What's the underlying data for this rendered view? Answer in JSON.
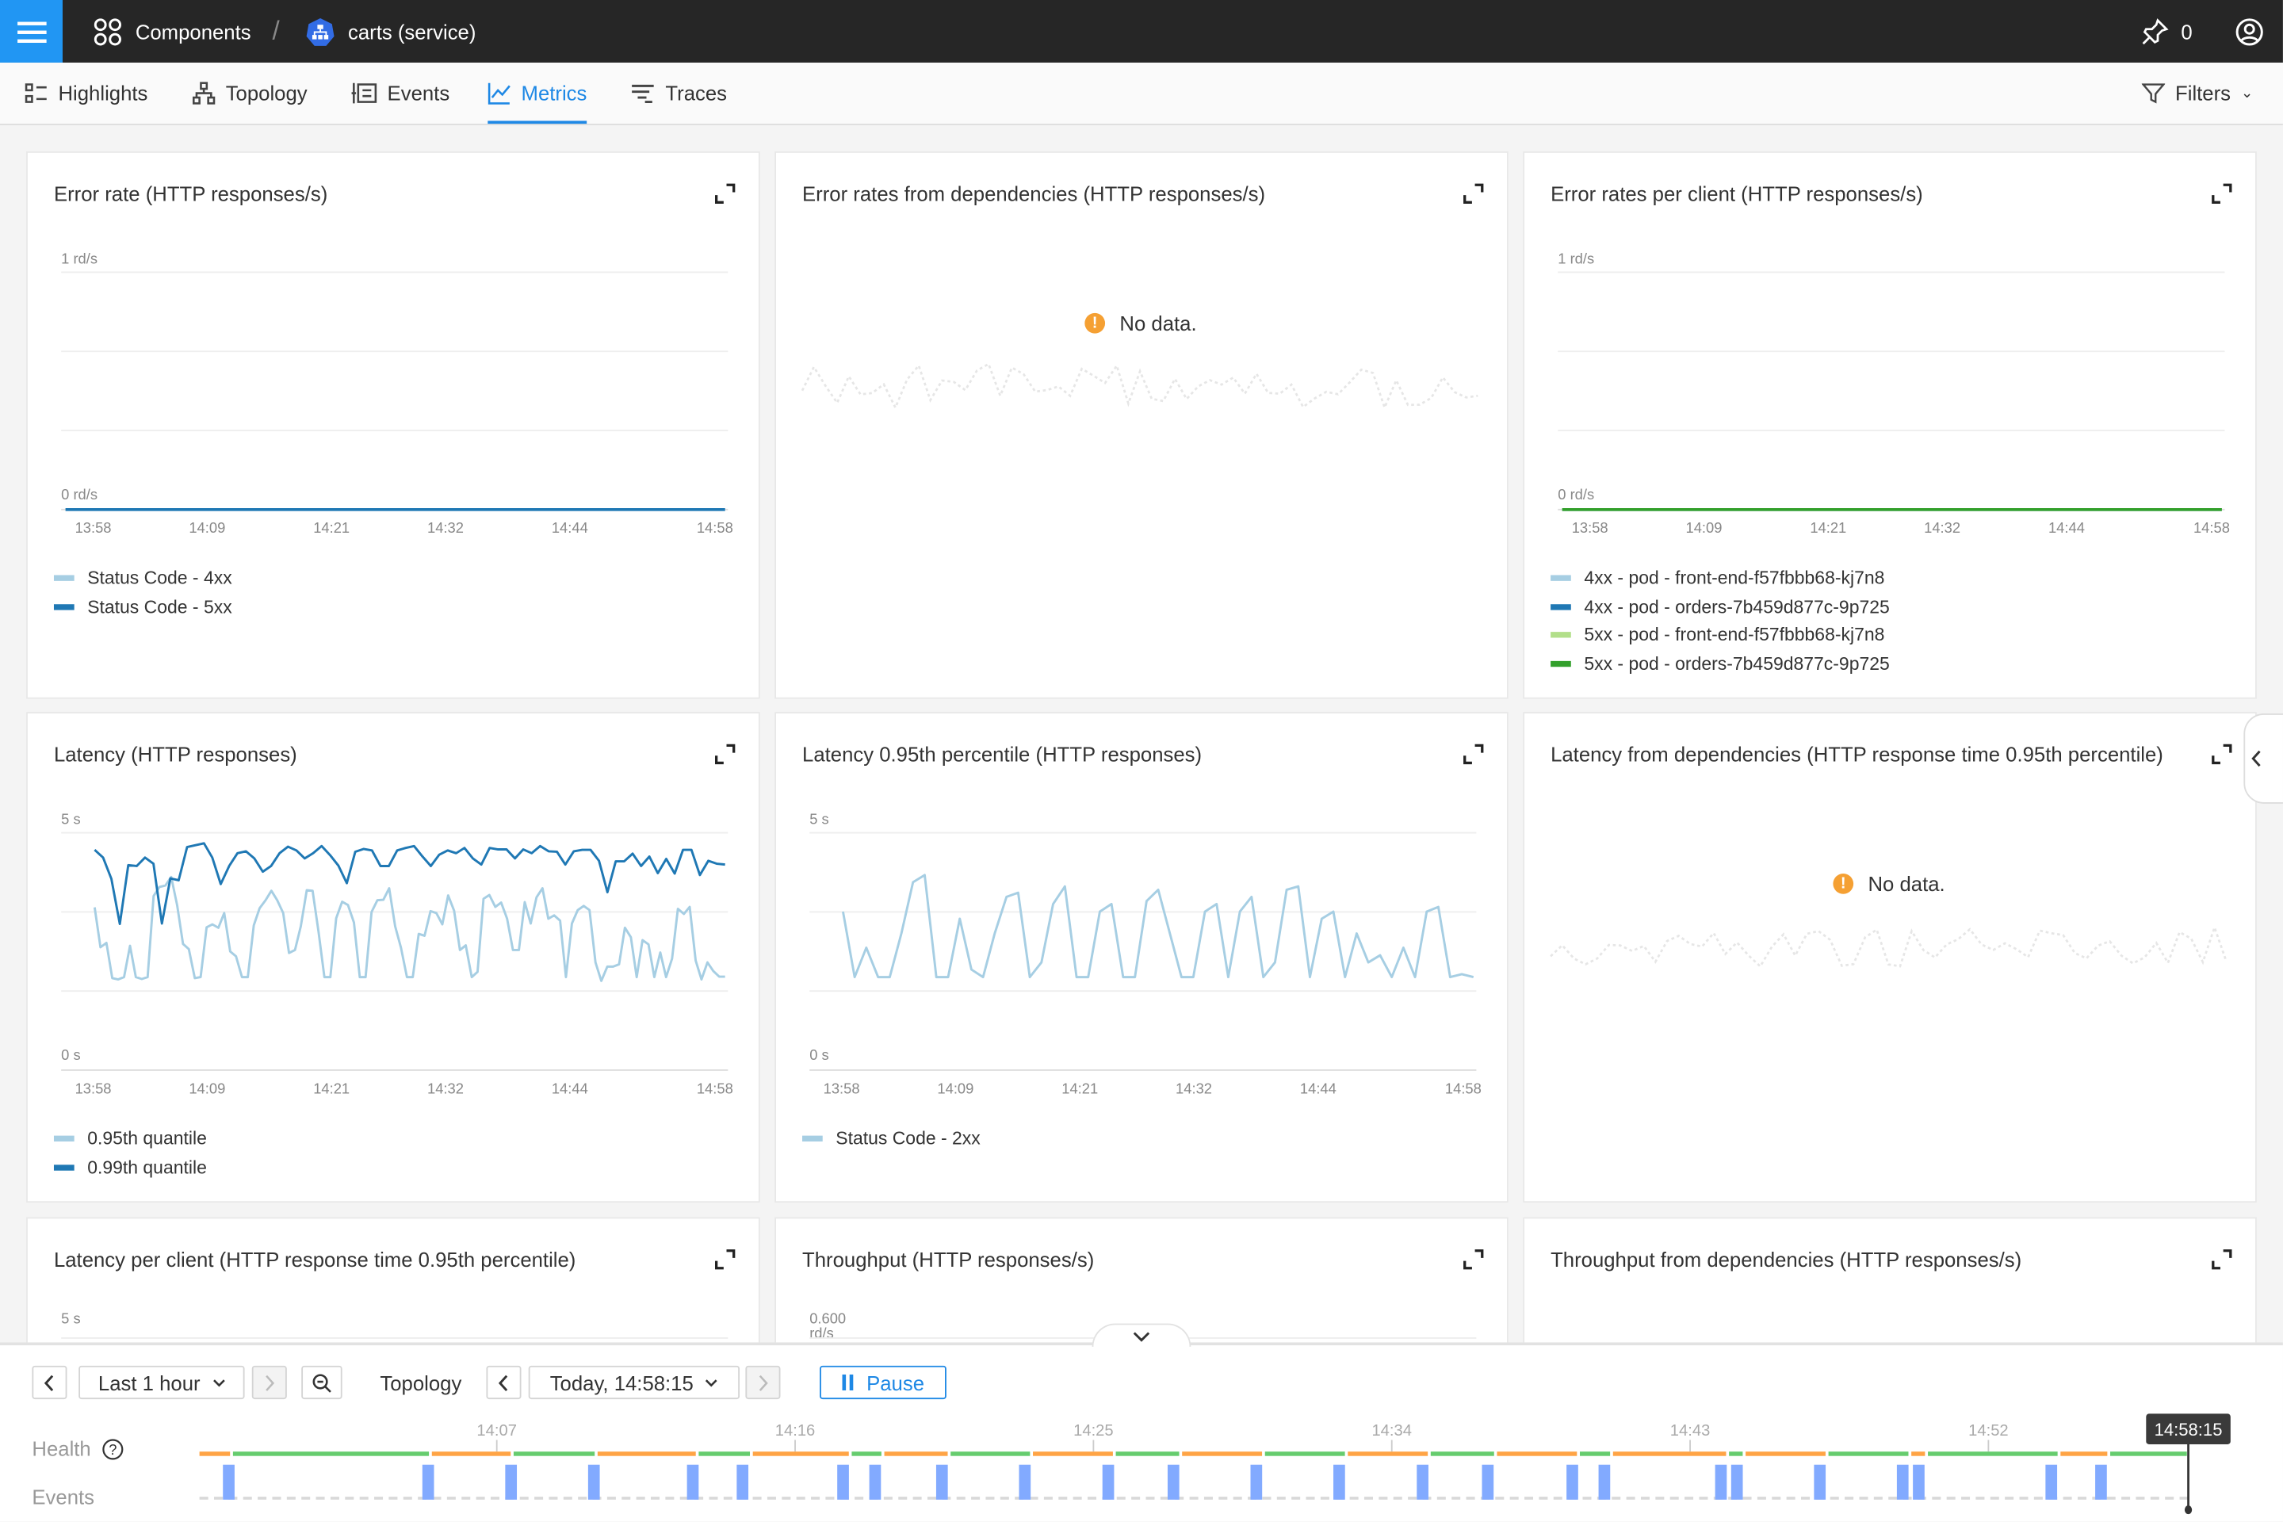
{
  "topbar": {
    "menu_icon": "hamburger-icon",
    "breadcrumb": [
      {
        "label": "Components",
        "icon": "components-grid-icon"
      },
      {
        "label": "carts (service)",
        "icon": "kubernetes-service-icon"
      }
    ],
    "separator": "/",
    "pins_count": "0"
  },
  "tabs": [
    {
      "label": "Highlights",
      "icon": "highlights-icon"
    },
    {
      "label": "Topology",
      "icon": "topology-icon"
    },
    {
      "label": "Events",
      "icon": "events-icon"
    },
    {
      "label": "Metrics",
      "icon": "metrics-icon",
      "active": true
    },
    {
      "label": "Traces",
      "icon": "traces-icon"
    }
  ],
  "filters_label": "Filters",
  "colors": {
    "accent": "#1e88e5",
    "topbar": "#262626",
    "warning": "#f5a033",
    "health_ok": "#66cc6e",
    "health_warn": "#ffa445",
    "event": "#82aaff"
  },
  "chart_data": [
    {
      "type": "line",
      "title": "Error rate (HTTP responses/s)",
      "ylim": [
        0,
        1
      ],
      "yticks": [
        "1 rd/s",
        "0 rd/s"
      ],
      "x_range": [
        "13:58",
        "14:58"
      ],
      "xticks": [
        "13:58",
        "14:09",
        "14:21",
        "14:32",
        "14:44",
        "14:58"
      ],
      "grid": true,
      "series": [
        {
          "name": "Status Code - 4xx",
          "color": "#a6cee3",
          "values": [
            0,
            0
          ]
        },
        {
          "name": "Status Code - 5xx",
          "color": "#1f78b4",
          "values": [
            0,
            0
          ]
        }
      ]
    },
    {
      "type": "line",
      "title": "Error rates from dependencies (HTTP responses/s)",
      "no_data": "No data.",
      "series": []
    },
    {
      "type": "line",
      "title": "Error rates per client (HTTP responses/s)",
      "ylim": [
        0,
        1
      ],
      "yticks": [
        "1 rd/s",
        "0 rd/s"
      ],
      "x_range": [
        "13:58",
        "14:58"
      ],
      "xticks": [
        "13:58",
        "14:09",
        "14:21",
        "14:32",
        "14:44",
        "14:58"
      ],
      "grid": true,
      "series": [
        {
          "name": "4xx - pod - front-end-f57fbbb68-kj7n8",
          "color": "#a6cee3",
          "values": [
            0,
            0
          ]
        },
        {
          "name": "4xx - pod - orders-7b459d877c-9p725",
          "color": "#1f78b4",
          "values": [
            0,
            0
          ]
        },
        {
          "name": "5xx - pod - front-end-f57fbbb68-kj7n8",
          "color": "#b2df8a",
          "values": [
            0,
            0
          ]
        },
        {
          "name": "5xx - pod - orders-7b459d877c-9p725",
          "color": "#33a02c",
          "values": [
            0,
            0
          ]
        }
      ]
    },
    {
      "type": "line",
      "title": "Latency (HTTP responses)",
      "ylim": [
        0,
        5
      ],
      "yticks": [
        "5 s",
        "0 s"
      ],
      "x_range": [
        "13:58",
        "14:58"
      ],
      "xticks": [
        "13:58",
        "14:09",
        "14:21",
        "14:32",
        "14:44",
        "14:58"
      ],
      "grid": true,
      "series": [
        {
          "name": "0.95th quantile",
          "color": "#a6cee3",
          "values": [
            3.43,
            2.59,
            2.68,
            1.94,
            1.91,
            1.96,
            2.62,
            1.96,
            1.92,
            1.96,
            3.67,
            3.86,
            3.89,
            4.07,
            3.47,
            2.66,
            2.55,
            1.94,
            1.96,
            3.01,
            3.07,
            3.0,
            3.31,
            2.5,
            2.4,
            1.96,
            1.96,
            3.05,
            3.41,
            3.58,
            3.78,
            3.58,
            3.31,
            2.47,
            2.53,
            3.03,
            3.79,
            3.78,
            2.91,
            1.96,
            1.96,
            3.2,
            3.55,
            3.48,
            3.11,
            1.96,
            1.96,
            3.33,
            3.58,
            3.59,
            3.83,
            3.03,
            2.58,
            1.96,
            1.96,
            2.87,
            2.83,
            3.35,
            3.31,
            3.07,
            3.68,
            3.36,
            2.53,
            2.63,
            1.96,
            2.07,
            3.61,
            3.69,
            3.44,
            3.53,
            3.19,
            2.53,
            2.53,
            3.54,
            3.09,
            3.64,
            3.83,
            3.19,
            3.26,
            3.15,
            1.96,
            3.09,
            3.37,
            3.46,
            3.37,
            2.27,
            1.88,
            2.18,
            2.18,
            2.23,
            3.0,
            2.8,
            1.96,
            2.74,
            2.65,
            1.96,
            2.48,
            1.96,
            2.35,
            3.4,
            3.29,
            3.44,
            2.31,
            1.91,
            2.27,
            2.09,
            1.97,
            1.97
          ]
        },
        {
          "name": "0.99th quantile",
          "color": "#1f78b4",
          "values": [
            4.64,
            4.48,
            4.03,
            3.08,
            4.32,
            4.3,
            4.48,
            4.35,
            3.09,
            4.04,
            4.0,
            4.7,
            4.74,
            4.78,
            4.48,
            3.92,
            4.3,
            4.57,
            4.61,
            4.46,
            4.18,
            4.3,
            4.57,
            4.71,
            4.63,
            4.46,
            4.57,
            4.72,
            4.53,
            4.31,
            3.94,
            4.6,
            4.66,
            4.63,
            4.3,
            4.3,
            4.63,
            4.68,
            4.72,
            4.5,
            4.3,
            4.54,
            4.63,
            4.57,
            4.68,
            4.46,
            4.33,
            4.68,
            4.65,
            4.65,
            4.46,
            4.65,
            4.57,
            4.72,
            4.61,
            4.6,
            4.33,
            4.61,
            4.64,
            4.64,
            4.41,
            3.75,
            4.4,
            4.4,
            4.56,
            4.3,
            4.5,
            4.15,
            4.45,
            4.14,
            4.64,
            4.64,
            4.11,
            4.41,
            4.35,
            4.33
          ]
        }
      ]
    },
    {
      "type": "line",
      "title": "Latency 0.95th percentile (HTTP responses)",
      "ylim": [
        0,
        5
      ],
      "yticks": [
        "5 s",
        "0 s"
      ],
      "x_range": [
        "13:58",
        "14:58"
      ],
      "xticks": [
        "13:58",
        "14:09",
        "14:21",
        "14:32",
        "14:44",
        "14:58"
      ],
      "grid": true,
      "series": [
        {
          "name": "Status Code - 2xx",
          "color": "#a6cee3",
          "values": [
            3.34,
            1.96,
            2.58,
            1.96,
            1.96,
            2.88,
            3.96,
            4.11,
            1.96,
            1.96,
            3.19,
            2.12,
            1.96,
            2.88,
            3.65,
            3.74,
            1.96,
            2.27,
            3.5,
            3.87,
            1.96,
            1.96,
            3.34,
            3.5,
            1.96,
            1.96,
            3.56,
            3.8,
            2.88,
            1.96,
            1.96,
            3.34,
            3.5,
            1.96,
            3.34,
            3.65,
            1.96,
            2.27,
            3.8,
            3.87,
            1.96,
            3.19,
            3.34,
            1.96,
            2.88,
            2.27,
            2.42,
            1.96,
            2.58,
            1.96,
            3.34,
            3.44,
            1.96,
            2.02,
            1.96
          ]
        }
      ]
    },
    {
      "type": "line",
      "title": "Latency from dependencies (HTTP response time 0.95th percentile)",
      "no_data": "No data.",
      "series": []
    },
    {
      "type": "line",
      "title": "Latency per client (HTTP response time 0.95th percentile)",
      "yticks": [
        "5 s"
      ],
      "series": []
    },
    {
      "type": "line",
      "title": "Throughput (HTTP responses/s)",
      "yticks": [
        "0.600",
        "rd/s"
      ],
      "series": []
    },
    {
      "type": "line",
      "title": "Throughput from dependencies (HTTP responses/s)",
      "series": []
    }
  ],
  "bottom": {
    "range_label": "Last 1 hour",
    "mode_label": "Topology",
    "time_label": "Today, 14:58:15",
    "pause_label": "Pause",
    "health_label": "Health",
    "events_label": "Events",
    "cursor_time": "14:58:15",
    "timeline": {
      "range": [
        "13:58:15",
        "14:58:15"
      ],
      "ticks": [
        "14:07",
        "14:16",
        "14:25",
        "14:34",
        "14:43",
        "14:52"
      ],
      "health_boundaries": [
        "13:58:15",
        "13:59:13",
        "14:05:13",
        "14:07:41",
        "14:10:13",
        "14:13:16",
        "14:14:54",
        "14:17:53",
        "14:18:52",
        "14:20:52",
        "14:23:21",
        "14:25:51",
        "14:27:51",
        "14:30:21",
        "14:32:51",
        "14:35:21",
        "14:37:21",
        "14:39:51",
        "14:40:51",
        "14:44:21",
        "14:44:51",
        "14:47:21",
        "14:49:51",
        "14:50:21",
        "14:54:21",
        "14:55:51",
        "14:58:15"
      ],
      "health_states": [
        "deviating",
        "clear",
        "deviating",
        "clear",
        "deviating",
        "clear",
        "deviating",
        "clear",
        "deviating",
        "clear",
        "deviating",
        "clear",
        "deviating",
        "clear",
        "deviating",
        "clear",
        "deviating",
        "clear",
        "deviating",
        "clear",
        "deviating",
        "clear",
        "deviating",
        "clear",
        "deviating",
        "clear"
      ],
      "events": [
        "13:59:08",
        "14:05:09",
        "14:07:39",
        "14:10:09",
        "14:13:08",
        "14:14:38",
        "14:17:40",
        "14:18:38",
        "14:20:39",
        "14:23:09",
        "14:25:40",
        "14:27:38",
        "14:30:08",
        "14:32:38",
        "14:35:09",
        "14:37:07",
        "14:39:40",
        "14:40:38",
        "14:44:09",
        "14:44:38",
        "14:47:08",
        "14:49:38",
        "14:50:07",
        "14:54:07",
        "14:55:37"
      ]
    }
  }
}
